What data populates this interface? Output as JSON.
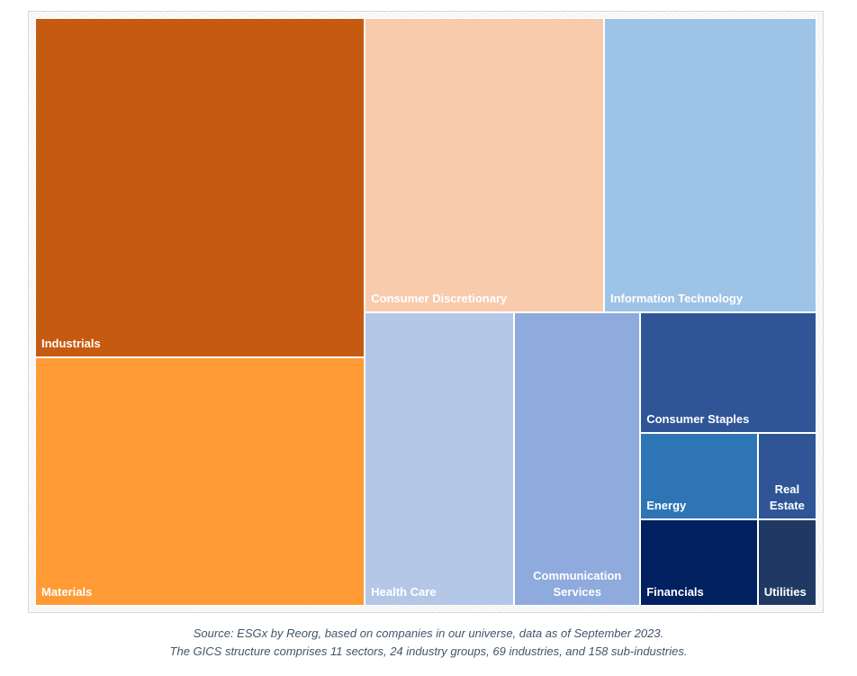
{
  "chart_data": {
    "type": "treemap",
    "title": "",
    "unit": "approximate share of area (%)",
    "items": [
      {
        "name": "Industrials",
        "value": 24.2,
        "color": "#C55A11"
      },
      {
        "name": "Materials",
        "value": 17.7,
        "color": "#FF9A35"
      },
      {
        "name": "Consumer Discretionary",
        "value": 15.2,
        "color": "#F8CBAD"
      },
      {
        "name": "Information Technology",
        "value": 13.5,
        "color": "#9DC3E6"
      },
      {
        "name": "Health Care",
        "value": 9.5,
        "color": "#B4C7E7"
      },
      {
        "name": "Communication Services",
        "value": 8.0,
        "color": "#8FAADC"
      },
      {
        "name": "Consumer Staples",
        "value": 4.6,
        "color": "#2F5597"
      },
      {
        "name": "Energy",
        "value": 2.2,
        "color": "#2E75B6"
      },
      {
        "name": "Real Estate",
        "value": 1.1,
        "color": "#2F5597"
      },
      {
        "name": "Financials",
        "value": 2.2,
        "color": "#002060"
      },
      {
        "name": "Utilities",
        "value": 1.1,
        "color": "#203864"
      }
    ]
  },
  "caption": {
    "line1": "Source: ESGx by Reorg, based on companies in our universe, data as of September 2023.",
    "line2": "The GICS structure comprises 11 sectors, 24 industry groups, 69 industries, and 158 sub-industries."
  }
}
